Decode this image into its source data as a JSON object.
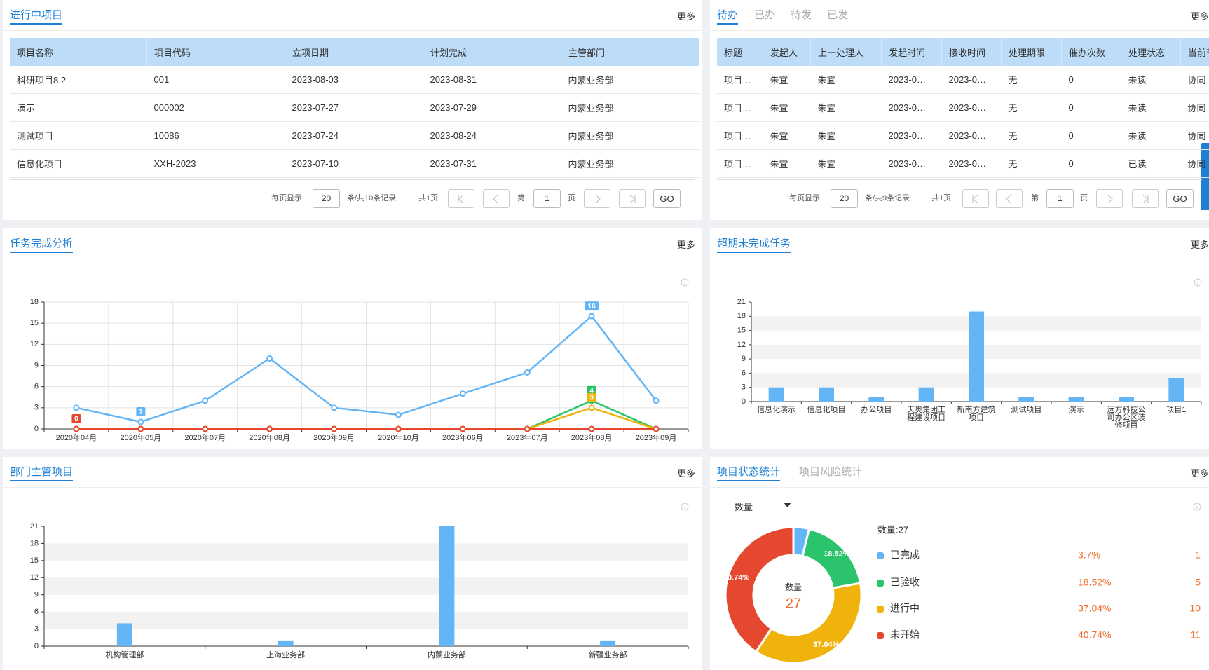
{
  "projects": {
    "title": "进行中项目",
    "more": "更多",
    "columns": [
      "项目名称",
      "项目代码",
      "立项日期",
      "计划完成",
      "主管部门"
    ],
    "rows": [
      [
        "科研项目8.2",
        "001",
        "2023-08-03",
        "2023-08-31",
        "内蒙业务部"
      ],
      [
        "演示",
        "000002",
        "2023-07-27",
        "2023-07-29",
        "内蒙业务部"
      ],
      [
        "测试项目",
        "10086",
        "2023-07-24",
        "2023-08-24",
        "内蒙业务部"
      ],
      [
        "信息化项目",
        "XXH-2023",
        "2023-07-10",
        "2023-07-31",
        "内蒙业务部"
      ]
    ],
    "pager": {
      "per_page_label": "每页显示",
      "per_page": 20,
      "records": "条/共10条记录",
      "pages": "共1页",
      "page_prefix": "第",
      "page": 1,
      "page_suffix": "页",
      "go": "GO"
    }
  },
  "todo": {
    "tabs": [
      "待办",
      "已办",
      "待发",
      "已发"
    ],
    "more": "更多",
    "columns": [
      "标题",
      "发起人",
      "上一处理人",
      "发起时间",
      "接收时间",
      "处理期限",
      "催办次数",
      "处理状态",
      "当前节"
    ],
    "rows": [
      [
        "项目…",
        "朱宜",
        "朱宜",
        "2023-0…",
        "2023-0…",
        "无",
        "0",
        "未读",
        "协同"
      ],
      [
        "项目…",
        "朱宜",
        "朱宜",
        "2023-0…",
        "2023-0…",
        "无",
        "0",
        "未读",
        "协同"
      ],
      [
        "项目…",
        "朱宜",
        "朱宜",
        "2023-0…",
        "2023-0…",
        "无",
        "0",
        "未读",
        "协同"
      ],
      [
        "项目…",
        "朱宜",
        "朱宜",
        "2023-0…",
        "2023-0…",
        "无",
        "0",
        "已读",
        "协同"
      ]
    ],
    "pager": {
      "per_page_label": "每页显示",
      "per_page": 20,
      "records": "条/共9条记录",
      "pages": "共1页",
      "page_prefix": "第",
      "page": 1,
      "page_suffix": "页",
      "go": "GO"
    }
  },
  "tasks": {
    "title": "任务完成分析",
    "more": "更多",
    "chart_data": {
      "type": "line",
      "categories": [
        "2020年04月",
        "2020年05月",
        "2020年07月",
        "2020年08月",
        "2020年09月",
        "2020年10月",
        "2023年06月",
        "2023年07月",
        "2023年08月",
        "2023年09月"
      ],
      "series": [
        {
          "color": "#64b5f6",
          "values": [
            3,
            1,
            4,
            10,
            3,
            2,
            5,
            8,
            16,
            4
          ],
          "mark_points": [
            "max",
            "min"
          ]
        },
        {
          "color": "#2bc36b",
          "values": [
            0,
            0,
            0,
            0,
            0,
            0,
            0,
            0,
            4,
            0
          ],
          "mark_points": [
            "max"
          ]
        },
        {
          "color": "#f0b30c",
          "values": [
            0,
            0,
            0,
            0,
            0,
            0,
            0,
            0,
            3,
            0
          ],
          "mark_points": [
            "max"
          ]
        },
        {
          "color": "#e5482f",
          "values": [
            0,
            0,
            0,
            0,
            0,
            0,
            0,
            0,
            0,
            0
          ],
          "mark_points": [
            "max"
          ]
        }
      ],
      "ylim": [
        0,
        18
      ],
      "yticks": [
        0,
        3,
        6,
        9,
        12,
        15,
        18
      ],
      "grid": true
    }
  },
  "overdue": {
    "title": "超期未完成任务",
    "more": "更多",
    "chart_data": {
      "type": "bar",
      "categories": [
        "信息化演示",
        "信息化项目",
        "办公项目",
        "天奥集团工程建设项目",
        "新南方建筑项目",
        "测试项目",
        "演示",
        "远方科技公司办公区装修项目",
        "项目1"
      ],
      "values": [
        3,
        3,
        1,
        3,
        19,
        1,
        1,
        1,
        5
      ],
      "color": "#64b5f6",
      "ylim": [
        0,
        21
      ],
      "yticks": [
        0,
        3,
        6,
        9,
        12,
        15,
        18,
        21
      ],
      "split_area": true
    }
  },
  "depts": {
    "title": "部门主管项目",
    "more": "更多",
    "chart_data": {
      "type": "bar",
      "categories": [
        "机构管理部",
        "上海业务部",
        "内蒙业务部",
        "新疆业务部"
      ],
      "values": [
        4,
        1,
        21,
        1
      ],
      "color": "#64b5f6",
      "ylim": [
        0,
        21
      ],
      "yticks": [
        0,
        3,
        6,
        9,
        12,
        15,
        18,
        21
      ],
      "split_area": true
    }
  },
  "status": {
    "tabs": [
      "项目状态统计",
      "项目风险统计"
    ],
    "more": "更多",
    "metric": "数量",
    "chart_data": {
      "type": "pie",
      "center_label": "数量",
      "total": 27,
      "legend_title": "数量:27",
      "categories": [
        "已完成",
        "已验收",
        "进行中",
        "未开始"
      ],
      "values": [
        1,
        5,
        10,
        11
      ],
      "percents": [
        3.7,
        18.52,
        37.04,
        40.74
      ],
      "percent_labels": [
        "3.7%",
        "18.52%",
        "37.04%",
        "40.74%"
      ],
      "colors": [
        "#64b5f6",
        "#2bc36b",
        "#f0b30c",
        "#e5482f"
      ]
    }
  }
}
